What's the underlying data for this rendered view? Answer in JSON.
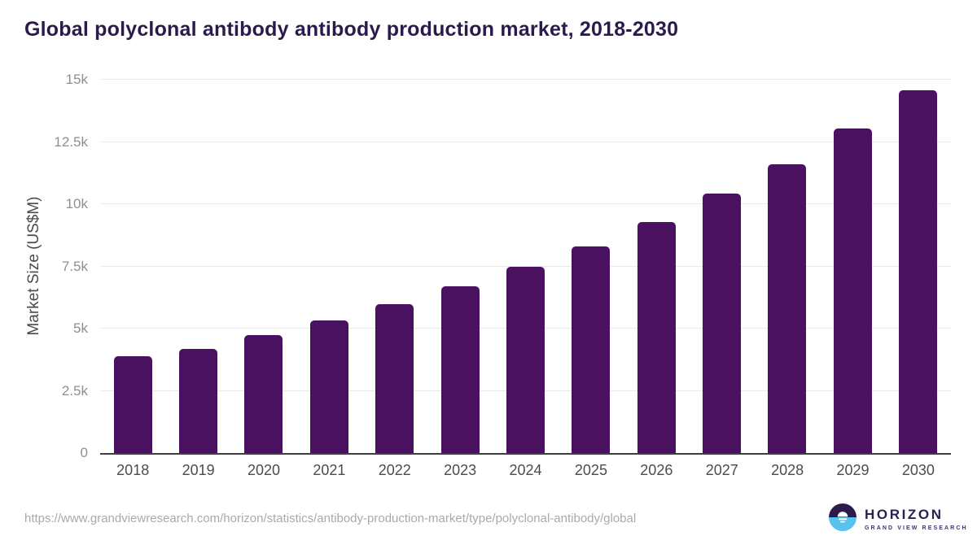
{
  "page": {
    "title": "Global polyclonal antibody antibody production market, 2018-2030",
    "footer": {
      "source_url": "https://www.grandviewresearch.com/horizon/statistics/antibody-production-market/type/polyclonal-antibody/global",
      "logo": {
        "name": "HORIZON",
        "subtitle": "GRAND VIEW RESEARCH"
      }
    }
  },
  "chart_data": {
    "type": "bar",
    "title": "Global polyclonal antibody antibody production market, 2018-2030",
    "categories": [
      "2018",
      "2019",
      "2020",
      "2021",
      "2022",
      "2023",
      "2024",
      "2025",
      "2026",
      "2027",
      "2028",
      "2029",
      "2030"
    ],
    "values": [
      3890,
      4180,
      4740,
      5330,
      5980,
      6700,
      7480,
      8300,
      9280,
      10430,
      11600,
      13040,
      14580
    ],
    "xlabel": "",
    "ylabel": "Market Size (US$M)",
    "ylim": [
      0,
      15000
    ],
    "yticks": [
      0,
      2500,
      5000,
      7500,
      10000,
      12500,
      15000
    ],
    "ytick_labels": [
      "0",
      "2.5k",
      "5k",
      "7.5k",
      "10k",
      "12.5k",
      "15k"
    ],
    "grid": true,
    "legend": "none",
    "bar_color": "#4a1160"
  },
  "colors": {
    "title": "#2c1a4d",
    "y_axis_title": "#4a4a4a",
    "y_tick_label": "#8f8f8f",
    "x_tick_label": "#4c4c4c",
    "gridline": "#e9e9e9",
    "axis_line": "#3f3f3f",
    "footer_text": "#a9a9a9",
    "logo_dark_half": "#2d1b4a",
    "logo_blue_half": "#5ac2ee",
    "logo_name_text": "#2a2150",
    "logo_subtitle_text": "#44306b",
    "background": "#ffffff"
  }
}
